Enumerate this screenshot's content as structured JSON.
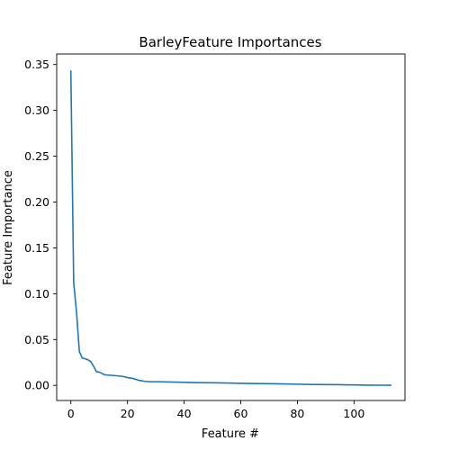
{
  "chart_data": {
    "type": "line",
    "title": "BarleyFeature Importances",
    "xlabel": "Feature #",
    "ylabel": "Feature Importance",
    "xlim": [
      -5,
      118
    ],
    "ylim": [
      -0.0165,
      0.3615
    ],
    "xticks": [
      0,
      20,
      40,
      60,
      80,
      100
    ],
    "xtick_labels": [
      "0",
      "20",
      "40",
      "60",
      "80",
      "100"
    ],
    "yticks": [
      0.0,
      0.05,
      0.1,
      0.15,
      0.2,
      0.25,
      0.3,
      0.35
    ],
    "ytick_labels": [
      "0.00",
      "0.05",
      "0.10",
      "0.15",
      "0.20",
      "0.25",
      "0.30",
      "0.35"
    ],
    "grid": false,
    "series": [
      {
        "color": "#1f77b4",
        "x": [
          0,
          1,
          2,
          3,
          4,
          5,
          6,
          7,
          8,
          9,
          10,
          11,
          12,
          14,
          16,
          18,
          20,
          22,
          24,
          26,
          28,
          30,
          35,
          40,
          45,
          50,
          55,
          60,
          65,
          70,
          75,
          80,
          85,
          90,
          95,
          100,
          105,
          110,
          113
        ],
        "values": [
          0.343,
          0.112,
          0.08,
          0.037,
          0.03,
          0.029,
          0.028,
          0.026,
          0.021,
          0.015,
          0.0145,
          0.013,
          0.0115,
          0.011,
          0.0105,
          0.01,
          0.0085,
          0.0075,
          0.0055,
          0.0045,
          0.004,
          0.004,
          0.0037,
          0.0033,
          0.003,
          0.0028,
          0.0026,
          0.0022,
          0.002,
          0.0018,
          0.0016,
          0.0013,
          0.001,
          0.0009,
          0.0007,
          0.0005,
          0.0003,
          0.0002,
          0.0001
        ]
      }
    ]
  }
}
